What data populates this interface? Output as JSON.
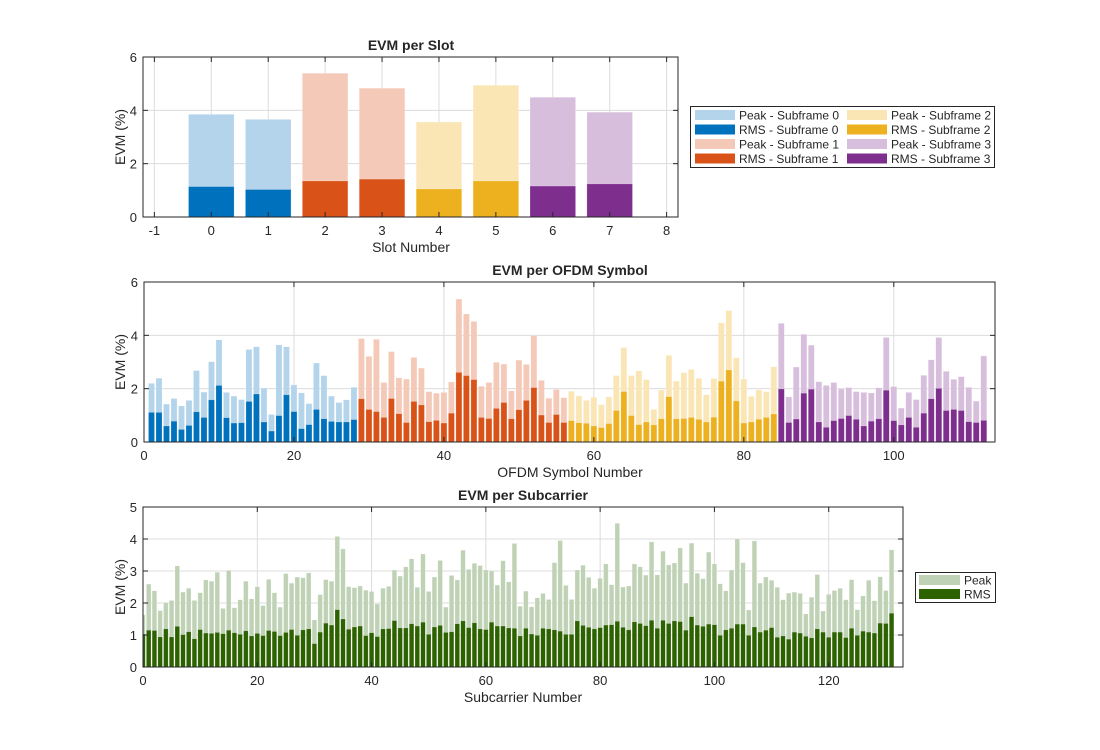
{
  "chart_data": [
    {
      "id": "slot",
      "type": "bar",
      "title": "EVM per Slot",
      "xlabel": "Slot Number",
      "ylabel": "EVM (%)",
      "xlim": [
        -1.2,
        8.2
      ],
      "ylim": [
        0,
        6
      ],
      "xticks": [
        -1,
        0,
        1,
        2,
        3,
        4,
        5,
        6,
        7,
        8
      ],
      "yticks": [
        0,
        2,
        4,
        6
      ],
      "grid": true,
      "legend_position": "right",
      "x": [
        0,
        1,
        2,
        3,
        4,
        5,
        6,
        7
      ],
      "group_of_x": [
        0,
        0,
        1,
        1,
        2,
        2,
        3,
        3
      ],
      "series": [
        {
          "name": "Peak",
          "values": [
            3.85,
            3.66,
            5.39,
            4.83,
            3.56,
            4.94,
            4.49,
            3.93
          ]
        },
        {
          "name": "RMS",
          "values": [
            1.14,
            1.03,
            1.35,
            1.42,
            1.05,
            1.35,
            1.16,
            1.24
          ]
        }
      ],
      "legend": [
        {
          "label": "Peak - Subframe 0",
          "color": "#B3D4EB"
        },
        {
          "label": "RMS - Subframe 0",
          "color": "#0072BD"
        },
        {
          "label": "Peak - Subframe 1",
          "color": "#F4C9B8"
        },
        {
          "label": "RMS - Subframe 1",
          "color": "#D95319"
        },
        {
          "label": "Peak - Subframe 2",
          "color": "#FAE5B5"
        },
        {
          "label": "RMS - Subframe 2",
          "color": "#EDB120"
        },
        {
          "label": "Peak - Subframe 3",
          "color": "#D8BEDD"
        },
        {
          "label": "RMS - Subframe 3",
          "color": "#7E2F8E"
        }
      ]
    },
    {
      "id": "symbol",
      "type": "bar",
      "title": "EVM per OFDM Symbol",
      "xlabel": "OFDM Symbol Number",
      "ylabel": "EVM (%)",
      "xlim": [
        0,
        113.5
      ],
      "ylim": [
        0,
        6
      ],
      "xticks": [
        0,
        20,
        40,
        60,
        80,
        100
      ],
      "yticks": [
        0,
        2,
        4,
        6
      ],
      "grid": true,
      "x_start": 1,
      "symbols_per_subframe": 28,
      "series": [
        {
          "name": "Peak",
          "values": [
            2.2,
            2.39,
            1.42,
            1.63,
            1.35,
            1.56,
            2.68,
            1.87,
            3.01,
            3.83,
            1.86,
            1.72,
            1.59,
            3.47,
            3.57,
            2.02,
            1.03,
            3.64,
            3.57,
            2.14,
            1.84,
            1.44,
            2.96,
            2.49,
            1.72,
            1.48,
            1.58,
            2.05,
            3.88,
            3.21,
            3.85,
            2.23,
            3.39,
            2.41,
            2.36,
            3.17,
            2.77,
            1.89,
            1.83,
            1.86,
            2.25,
            5.36,
            4.8,
            4.52,
            2.09,
            2.23,
            2.99,
            2.92,
            1.92,
            3.07,
            2.91,
            3.99,
            2.31,
            1.64,
            1.97,
            1.66,
            1.9,
            1.73,
            1.56,
            1.68,
            1.4,
            1.69,
            2.49,
            3.54,
            2.49,
            2.67,
            2.34,
            1.22,
            1.95,
            3.25,
            2.28,
            2.6,
            2.72,
            2.39,
            1.77,
            2.38,
            4.47,
            4.93,
            3.16,
            2.36,
            1.71,
            1.95,
            1.89,
            2.82,
            4.45,
            1.69,
            2.81,
            4.04,
            3.63,
            2.26,
            2.12,
            2.23,
            1.99,
            2.04,
            1.89,
            1.86,
            1.84,
            2.03,
            3.92,
            2.08,
            1.27,
            1.86,
            1.59,
            2.5,
            3.08,
            3.92,
            2.65,
            2.35,
            2.45,
            2.05,
            1.53,
            3.23
          ]
        },
        {
          "name": "RMS",
          "values": [
            1.11,
            1.11,
            0.6,
            0.78,
            0.47,
            0.62,
            1.13,
            0.92,
            1.58,
            2.12,
            0.91,
            0.71,
            0.72,
            1.52,
            1.8,
            0.75,
            0.41,
            0.99,
            1.77,
            1.14,
            0.5,
            0.65,
            1.22,
            0.87,
            0.77,
            0.75,
            0.75,
            0.84,
            1.62,
            1.22,
            1.14,
            0.92,
            1.63,
            1.06,
            0.73,
            1.52,
            1.39,
            0.76,
            0.81,
            0.71,
            1.08,
            2.61,
            2.49,
            2.34,
            0.92,
            0.88,
            1.26,
            1.48,
            0.87,
            1.21,
            1.56,
            2.04,
            1.01,
            0.73,
            1.03,
            0.73,
            0.8,
            0.72,
            0.7,
            0.6,
            0.54,
            0.69,
            1.18,
            1.89,
            0.99,
            0.65,
            0.75,
            0.64,
            0.87,
            1.7,
            0.87,
            0.88,
            0.92,
            0.85,
            0.75,
            0.93,
            2.28,
            2.7,
            1.54,
            0.71,
            0.75,
            0.85,
            0.92,
            1.05,
            1.99,
            0.73,
            0.86,
            1.83,
            1.98,
            0.75,
            0.55,
            0.8,
            0.88,
            0.99,
            0.85,
            0.6,
            0.78,
            0.87,
            1.94,
            0.8,
            0.64,
            0.92,
            0.55,
            1.08,
            1.62,
            2.01,
            1.18,
            1.22,
            1.18,
            0.76,
            0.73,
            0.81
          ]
        }
      ]
    },
    {
      "id": "subcarrier",
      "type": "bar",
      "title": "EVM per Subcarrier",
      "xlabel": "Subcarrier Number",
      "ylabel": "EVM (%)",
      "xlim": [
        0,
        133
      ],
      "ylim": [
        0,
        5
      ],
      "xticks": [
        0,
        20,
        40,
        60,
        80,
        100,
        120
      ],
      "yticks": [
        0,
        1,
        2,
        3,
        4,
        5
      ],
      "grid": true,
      "legend_position": "right",
      "x_start": 0,
      "series": [
        {
          "name": "Peak",
          "color": "#BFD2B5",
          "values": [
            1.63,
            2.59,
            2.38,
            1.76,
            2.01,
            2.08,
            3.16,
            2.34,
            2.46,
            2.08,
            2.32,
            2.72,
            2.68,
            2.96,
            1.83,
            3.02,
            1.85,
            2.1,
            2.68,
            2.13,
            2.51,
            1.92,
            2.74,
            2.32,
            1.87,
            2.92,
            2.62,
            2.81,
            2.79,
            2.94,
            1.47,
            2.26,
            2.73,
            2.68,
            4.08,
            3.69,
            2.51,
            2.48,
            2.53,
            2.4,
            2.36,
            1.97,
            2.46,
            2.52,
            3.03,
            2.84,
            3.13,
            3.38,
            2.49,
            3.53,
            2.36,
            2.81,
            3.33,
            1.87,
            2.86,
            2.72,
            3.65,
            3.05,
            3.24,
            3.17,
            3.03,
            3.0,
            2.56,
            3.32,
            2.66,
            3.86,
            1.9,
            2.37,
            1.88,
            2.16,
            2.3,
            2.11,
            3.26,
            3.95,
            2.55,
            2.11,
            3.03,
            3.18,
            2.8,
            2.46,
            2.77,
            3.22,
            2.57,
            4.49,
            2.5,
            2.53,
            3.22,
            3.13,
            2.87,
            3.91,
            2.88,
            3.62,
            3.19,
            3.25,
            3.72,
            2.62,
            3.87,
            2.93,
            2.76,
            3.59,
            3.22,
            2.6,
            2.38,
            3.03,
            4.0,
            3.26,
            1.78,
            3.94,
            2.62,
            2.81,
            2.71,
            2.49,
            2.1,
            2.31,
            2.34,
            2.3,
            1.66,
            2.18,
            2.89,
            1.75,
            2.27,
            2.39,
            2.46,
            2.1,
            2.73,
            1.79,
            2.22,
            2.71,
            2.07,
            2.82,
            2.39,
            3.66
          ]
        },
        {
          "name": "RMS",
          "color": "#2D6200",
          "values": [
            1.03,
            1.15,
            1.14,
            0.94,
            1.19,
            0.94,
            1.27,
            1.01,
            1.1,
            0.88,
            1.17,
            1.06,
            1.05,
            1.08,
            1.04,
            1.15,
            1.07,
            1.02,
            1.13,
            0.97,
            1.05,
            0.98,
            1.14,
            1.11,
            0.98,
            1.08,
            1.17,
            0.99,
            1.16,
            1.19,
            0.73,
            1.09,
            1.37,
            1.31,
            1.79,
            1.5,
            1.18,
            1.25,
            1.28,
            0.98,
            1.07,
            0.95,
            1.19,
            1.2,
            1.45,
            1.22,
            1.22,
            1.35,
            1.28,
            1.4,
            1.02,
            1.25,
            1.3,
            1.08,
            1.1,
            1.35,
            1.44,
            1.23,
            1.38,
            1.19,
            1.17,
            1.4,
            1.28,
            1.28,
            1.22,
            1.21,
            0.97,
            1.21,
            1.03,
            0.99,
            1.21,
            1.19,
            1.16,
            1.12,
            1.02,
            1.02,
            1.44,
            1.3,
            1.24,
            1.19,
            1.23,
            1.31,
            1.32,
            1.43,
            1.24,
            1.16,
            1.41,
            1.36,
            1.29,
            1.46,
            1.21,
            1.46,
            1.36,
            1.44,
            1.42,
            1.15,
            1.57,
            1.31,
            1.27,
            1.34,
            1.32,
            0.99,
            1.16,
            1.21,
            1.34,
            1.34,
            0.99,
            1.25,
            1.09,
            1.15,
            1.23,
            0.93,
            0.97,
            0.87,
            1.09,
            1.06,
            0.96,
            0.91,
            1.19,
            1.09,
            0.93,
            1.09,
            1.09,
            0.92,
            1.21,
            0.99,
            1.12,
            1.09,
            1.06,
            1.37,
            1.36,
            1.68
          ]
        }
      ],
      "legend": [
        {
          "label": "Peak",
          "color": "#BFD2B5"
        },
        {
          "label": "RMS",
          "color": "#2D6200"
        }
      ]
    }
  ],
  "subframe_colors": {
    "peak": [
      "#B3D4EB",
      "#F4C9B8",
      "#FAE5B5",
      "#D8BEDD"
    ],
    "rms": [
      "#0072BD",
      "#D95319",
      "#EDB120",
      "#7E2F8E"
    ]
  }
}
